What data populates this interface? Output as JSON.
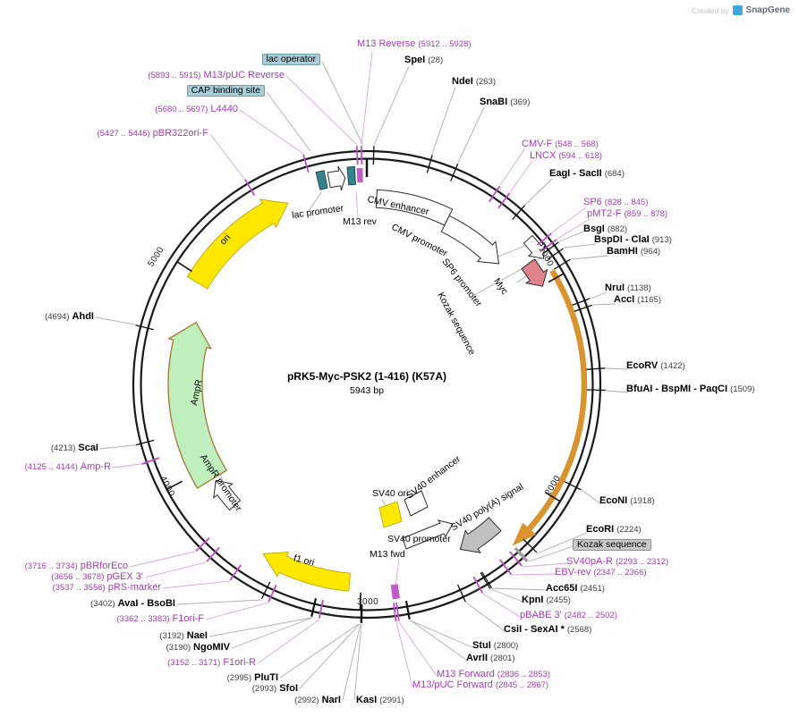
{
  "watermark": {
    "created_by": "Created by",
    "brand": "SnapGene"
  },
  "title": {
    "name": "pRK5-Myc-PSK2 (1-416) (K57A)",
    "size": "5943 bp"
  },
  "scale_marks": [
    "1000",
    "2000",
    "3000",
    "4000",
    "5000"
  ],
  "features": {
    "lac_promoter": "lac promoter",
    "m13_rev": "M13 rev",
    "cmv_enhancer": "CMV enhancer",
    "cmv_promoter": "CMV promoter",
    "sp6_promoter": "SP6 promoter",
    "myc": "Myc",
    "kozak": "Kozak sequence",
    "ori": "ori",
    "ampr": "AmpR",
    "ampr_promoter": "AmpR promoter",
    "f1_ori": "f1 ori",
    "sv40_ori": "SV40 ori",
    "sv40_enhancer": "SV40 enhancer",
    "sv40_promoter": "SV40 promoter",
    "m13_fwd": "M13 fwd",
    "sv40_polya": "SV40 poly(A) signal"
  },
  "labels": [
    {
      "name": "M13 Reverse",
      "pos": "(5912 .. 5928)"
    },
    {
      "name": "SpeI",
      "pos": "(28)"
    },
    {
      "name": "NdeI",
      "pos": "(263)"
    },
    {
      "name": "SnaBI",
      "pos": "(369)"
    },
    {
      "name": "CMV-F",
      "pos": "(548 .. 568)"
    },
    {
      "name": "LNCX",
      "pos": "(594 .. 618)"
    },
    {
      "name": "EagI - SacII",
      "pos": "(684)"
    },
    {
      "name": "SP6",
      "pos": "(828 .. 845)"
    },
    {
      "name": "pMT2-F",
      "pos": "(859 .. 878)"
    },
    {
      "name": "BsgI",
      "pos": "(882)"
    },
    {
      "name": "BspDI - ClaI",
      "pos": "(913)"
    },
    {
      "name": "BamHI",
      "pos": "(964)"
    },
    {
      "name": "NruI",
      "pos": "(1138)"
    },
    {
      "name": "AccI",
      "pos": "(1165)"
    },
    {
      "name": "EcoRV",
      "pos": "(1422)"
    },
    {
      "name": "BfuAI - BspMI - PaqCI",
      "pos": "(1509)"
    },
    {
      "name": "EcoNI",
      "pos": "(1918)"
    },
    {
      "name": "EcoRI",
      "pos": "(2224)"
    },
    {
      "name": "Kozak sequence",
      "pos": ""
    },
    {
      "name": "SV40pA-R",
      "pos": "(2293 .. 2312)"
    },
    {
      "name": "EBV-rev",
      "pos": "(2347 .. 2366)"
    },
    {
      "name": "Acc65I",
      "pos": "(2451)"
    },
    {
      "name": "KpnI",
      "pos": "(2455)"
    },
    {
      "name": "pBABE 3'",
      "pos": "(2482 .. 2502)"
    },
    {
      "name": "CsiI - SexAI *",
      "pos": "(2568)"
    },
    {
      "name": "StuI",
      "pos": "(2800)"
    },
    {
      "name": "AvrII",
      "pos": "(2801)"
    },
    {
      "name": "M13 Forward",
      "pos": "(2836 .. 2853)"
    },
    {
      "name": "M13/pUC Forward",
      "pos": "(2845 .. 2867)"
    },
    {
      "name": "KasI",
      "pos": "(2991)"
    },
    {
      "name": "NarI",
      "pos": "(2992)"
    },
    {
      "name": "SfoI",
      "pos": "(2993)"
    },
    {
      "name": "PluTI",
      "pos": "(2995)"
    },
    {
      "name": "F1ori-R",
      "pos": "(3152 .. 3171)"
    },
    {
      "name": "NaeI",
      "pos": "(3192)"
    },
    {
      "name": "NgoMIV",
      "pos": "(3190)"
    },
    {
      "name": "F1ori-F",
      "pos": "(3362 .. 3383)"
    },
    {
      "name": "AvaI - BsoBI",
      "pos": "(3402)"
    },
    {
      "name": "pRS-marker",
      "pos": "(3537 .. 3556)"
    },
    {
      "name": "pGEX 3'",
      "pos": "(3656 .. 3678)"
    },
    {
      "name": "pBRforEco",
      "pos": "(3716 .. 3734)"
    },
    {
      "name": "Amp-R",
      "pos": "(4125 .. 4144)"
    },
    {
      "name": "ScaI",
      "pos": "(4213)"
    },
    {
      "name": "AhdI",
      "pos": "(4694)"
    },
    {
      "name": "pBR322ori-F",
      "pos": "(5427 .. 5446)"
    },
    {
      "name": "L4440",
      "pos": "(5680 .. 5697)"
    },
    {
      "name": "CAP binding site",
      "pos": ""
    },
    {
      "name": "M13/pUC Reverse",
      "pos": "(5893 .. 5915)"
    },
    {
      "name": "lac operator",
      "pos": ""
    }
  ]
}
